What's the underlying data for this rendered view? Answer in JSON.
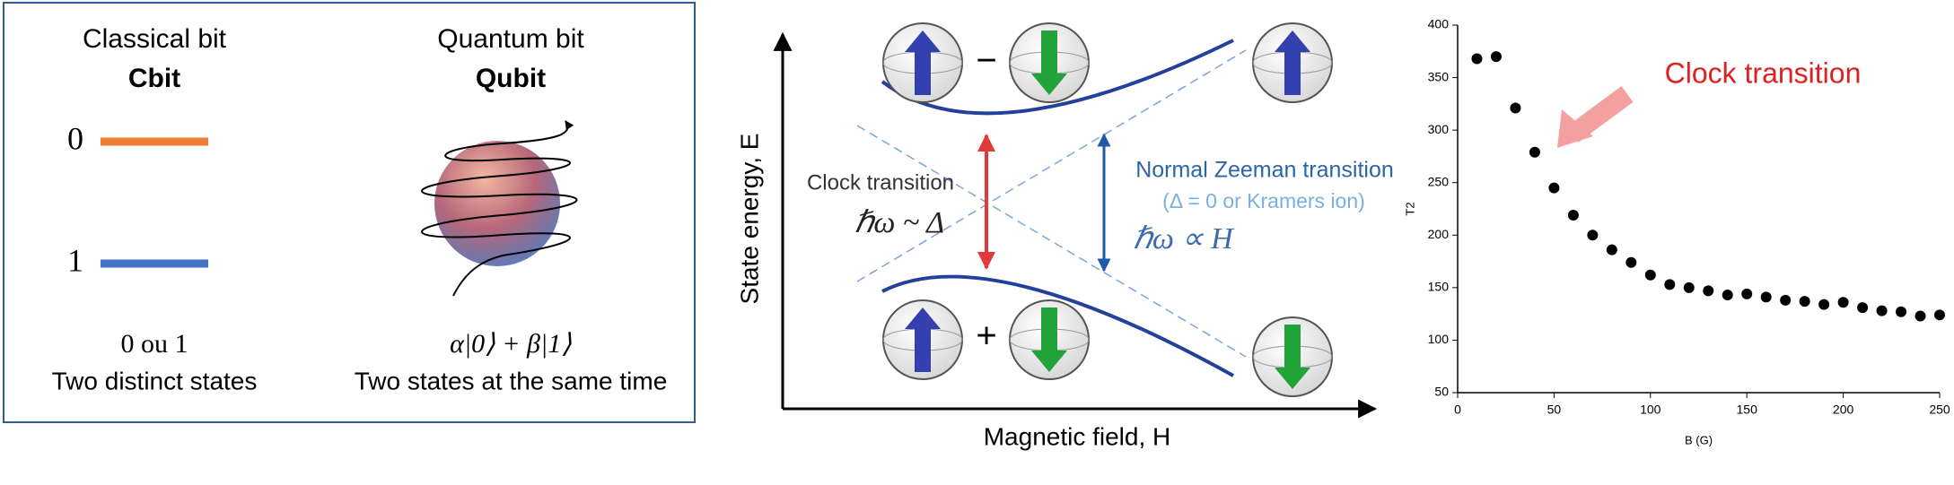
{
  "bits": {
    "classical_title": "Classical bit",
    "classical_short": "Cbit",
    "level_0": "0",
    "level_1": "1",
    "classical_states": "0 ou 1",
    "classical_caption": "Two distinct states",
    "quantum_title": "Quantum bit",
    "quantum_short": "Qubit",
    "quantum_states": "α|0⟩ + β|1⟩",
    "quantum_caption": "Two states at the same time"
  },
  "energy": {
    "y_label": "State energy, E",
    "x_label": "Magnetic field, H",
    "clock_label": "Clock transition",
    "clock_formula": "ℏω ~ Δ",
    "zeeman_label": "Normal Zeeman transition",
    "zeeman_note": "(Δ = 0 or Kramers ion)",
    "zeeman_formula": "ℏω ∝ H",
    "upper_sign": "−",
    "lower_sign": "+"
  },
  "chart_data": {
    "type": "scatter",
    "annotation": "Clock transition",
    "xlabel": "B (G)",
    "ylabel": "T2",
    "color": "#000000",
    "x": [
      10,
      20,
      30,
      40,
      50,
      60,
      70,
      80,
      90,
      100,
      110,
      120,
      130,
      140,
      150,
      160,
      170,
      180,
      190,
      200,
      210,
      220,
      230,
      240,
      250
    ],
    "values": [
      368,
      370,
      321,
      279,
      245,
      219,
      200,
      186,
      174,
      162,
      153,
      150,
      147,
      143,
      144,
      141,
      138,
      137,
      134,
      136,
      131,
      128,
      127,
      123,
      124
    ],
    "xlim": [
      0,
      250
    ],
    "ylim": [
      50,
      400
    ],
    "xticks": [
      0,
      50,
      100,
      150,
      200,
      250
    ],
    "yticks": [
      50,
      100,
      150,
      200,
      250,
      300,
      350,
      400
    ]
  }
}
